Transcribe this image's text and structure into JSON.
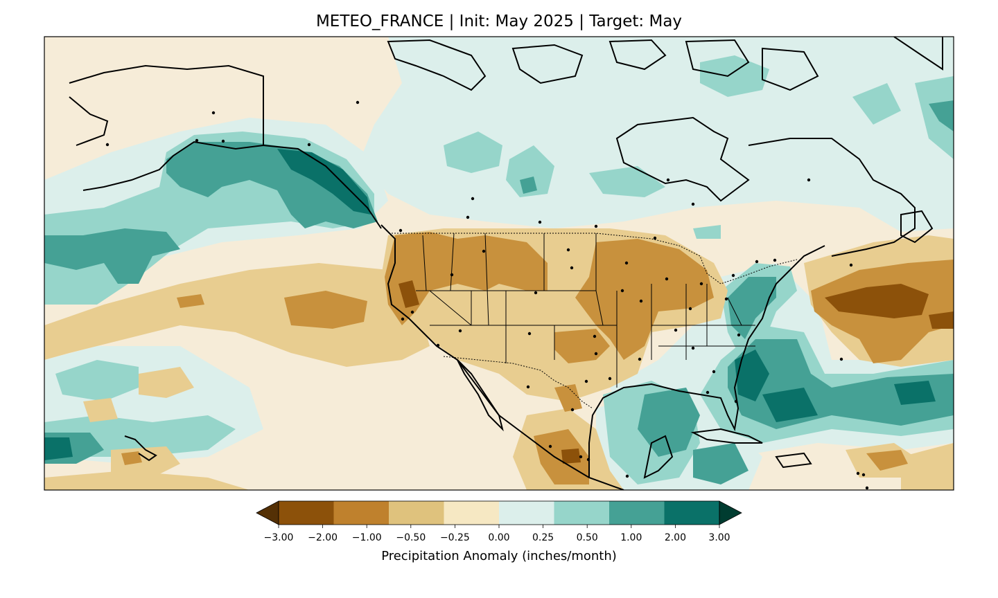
{
  "figure": {
    "title": "METEO_FRANCE | Init: May 2025 | Target: May",
    "colorbar_label": "Precipitation Anomaly (inches/month)"
  },
  "legend": {
    "ticks": [
      "−3.00",
      "−2.00",
      "−1.00",
      "−0.50",
      "−0.25",
      "0.00",
      "0.25",
      "0.50",
      "1.00",
      "2.00",
      "3.00"
    ],
    "colors": [
      "#543005",
      "#8c510a",
      "#bf812d",
      "#dfc27d",
      "#f6e8c3",
      "#dcefeb",
      "#96d5ca",
      "#45a195",
      "#0a7168",
      "#003c30"
    ],
    "extend": "both"
  },
  "palette": {
    "background": "#f6ecd8",
    "dry_light": "#e8cd90",
    "dry_mid": "#c8913d",
    "dry_strong": "#8c510a",
    "wet_light": "#dcefeb",
    "wet_mid": "#96d5ca",
    "wet_strong": "#45a195",
    "wet_very": "#0a7168",
    "coast": "#000000"
  }
}
